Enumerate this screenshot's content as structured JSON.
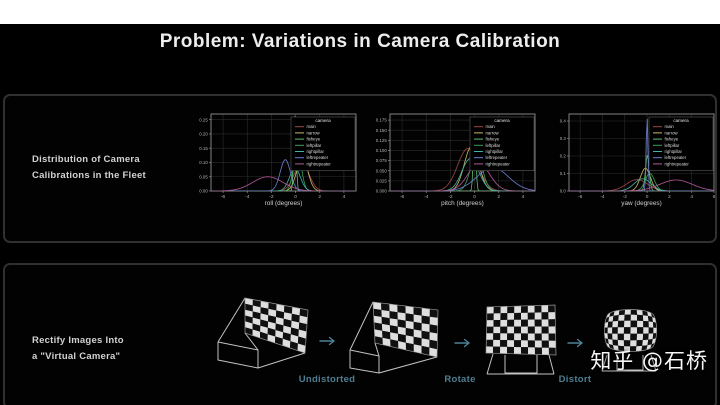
{
  "slide": {
    "title": "Problem: Variations in Camera Calibration",
    "watermark": "知乎 @石桥"
  },
  "colors": {
    "accent_teal": "#4e8296",
    "panel_border": "#303030",
    "grid": "#2c2c2c",
    "axis_frame": "#8f8f8f",
    "tick_text": "#b5b5b5",
    "wireframe": "#c2c2c2",
    "checker_light": "#dedede",
    "checker_dark": "#101010"
  },
  "panel_top": {
    "label_line1": "Distribution of Camera",
    "label_line2": "Calibrations in the Fleet"
  },
  "panel_bottom": {
    "label_line1": "Rectify Images Into",
    "label_line2": "a \"Virtual Camera\"",
    "steps": [
      "Undistorted",
      "Rotate",
      "Distort"
    ]
  },
  "chart_data": [
    {
      "type": "line",
      "title": "",
      "xlabel": "roll (degrees)",
      "ylabel": "",
      "xlim": [
        -7,
        5
      ],
      "ylim": [
        0,
        0.27
      ],
      "xticks": [
        -6,
        -4,
        -2,
        0,
        2,
        4
      ],
      "yticks": [
        0,
        0.05,
        0.1,
        0.15,
        0.2,
        0.25
      ],
      "ytick_labels": [
        "0.00",
        "0.05",
        "0.10",
        "0.15",
        "0.20",
        "0.25"
      ],
      "grid": true,
      "legend_position": "upper right",
      "legend_title": "camera",
      "series": [
        {
          "name": "main",
          "color": "#a04848",
          "mean": 0.5,
          "sigma": 0.6,
          "peak": 0.1
        },
        {
          "name": "narrow",
          "color": "#c9b96a",
          "mean": 0.55,
          "sigma": 0.45,
          "peak": 0.12
        },
        {
          "name": "fisheye",
          "color": "#5fbf6e",
          "mean": -0.05,
          "sigma": 0.1,
          "peak": 0.265
        },
        {
          "name": "leftpillar",
          "color": "#3f9d5a",
          "mean": 0.15,
          "sigma": 0.32,
          "peak": 0.145
        },
        {
          "name": "rightpillar",
          "color": "#43b3a6",
          "mean": -0.05,
          "sigma": 0.45,
          "peak": 0.08
        },
        {
          "name": "leftrepeater",
          "color": "#6b7fd4",
          "mean": -0.85,
          "sigma": 0.42,
          "peak": 0.11
        },
        {
          "name": "rightrepeater",
          "color": "#b45a9b",
          "mean": -2.3,
          "sigma": 1.25,
          "peak": 0.05
        }
      ]
    },
    {
      "type": "line",
      "title": "",
      "xlabel": "pitch (degrees)",
      "ylabel": "",
      "xlim": [
        -7,
        5
      ],
      "ylim": [
        0,
        0.19
      ],
      "xticks": [
        -6,
        -4,
        -2,
        0,
        2,
        4
      ],
      "yticks": [
        0,
        0.025,
        0.05,
        0.075,
        0.1,
        0.125,
        0.15,
        0.175
      ],
      "ytick_labels": [
        "0.000",
        "0.025",
        "0.050",
        "0.075",
        "0.100",
        "0.125",
        "0.150",
        "0.175"
      ],
      "grid": true,
      "legend_position": "upper right",
      "legend_title": "camera",
      "series": [
        {
          "name": "main",
          "color": "#a04848",
          "mean": -0.55,
          "sigma": 0.85,
          "peak": 0.105
        },
        {
          "name": "narrow",
          "color": "#c9b96a",
          "mean": -0.25,
          "sigma": 0.6,
          "peak": 0.11
        },
        {
          "name": "fisheye",
          "color": "#5fbf6e",
          "mean": 0.0,
          "sigma": 0.1,
          "peak": 0.185
        },
        {
          "name": "leftpillar",
          "color": "#3f9d5a",
          "mean": 0.15,
          "sigma": 0.5,
          "peak": 0.09
        },
        {
          "name": "rightpillar",
          "color": "#43b3a6",
          "mean": -0.35,
          "sigma": 0.7,
          "peak": 0.08
        },
        {
          "name": "leftrepeater",
          "color": "#6b7fd4",
          "mean": 1.5,
          "sigma": 1.3,
          "peak": 0.058
        },
        {
          "name": "rightrepeater",
          "color": "#b45a9b",
          "mean": 0.35,
          "sigma": 0.9,
          "peak": 0.068
        }
      ]
    },
    {
      "type": "line",
      "title": "",
      "xlabel": "yaw (degrees)",
      "ylabel": "",
      "xlim": [
        -7,
        6
      ],
      "ylim": [
        0,
        0.44
      ],
      "xticks": [
        -6,
        -4,
        -2,
        0,
        2,
        4,
        6
      ],
      "yticks": [
        0,
        0.1,
        0.2,
        0.3,
        0.4
      ],
      "ytick_labels": [
        "0.0",
        "0.1",
        "0.2",
        "0.3",
        "0.4"
      ],
      "grid": true,
      "legend_position": "upper right",
      "legend_title": "camera",
      "series": [
        {
          "name": "main",
          "color": "#a04848",
          "mean": -0.9,
          "sigma": 0.95,
          "peak": 0.065
        },
        {
          "name": "narrow",
          "color": "#c9b96a",
          "mean": -0.15,
          "sigma": 0.45,
          "peak": 0.13
        },
        {
          "name": "fisheye",
          "color": "#5fbf6e",
          "mean": 0.03,
          "sigma": 0.17,
          "peak": 0.205
        },
        {
          "name": "leftpillar",
          "color": "#3f9d5a",
          "mean": 0.25,
          "sigma": 0.42,
          "peak": 0.1
        },
        {
          "name": "rightpillar",
          "color": "#43b3a6",
          "mean": -0.4,
          "sigma": 0.75,
          "peak": 0.07
        },
        {
          "name": "leftrepeater",
          "color": "#6b7fd4",
          "mean": 0.0,
          "sigma": 0.08,
          "peak": 0.425
        },
        {
          "name": "rightrepeater",
          "color": "#b45a9b",
          "mean": 2.6,
          "sigma": 1.45,
          "peak": 0.063
        }
      ]
    }
  ]
}
